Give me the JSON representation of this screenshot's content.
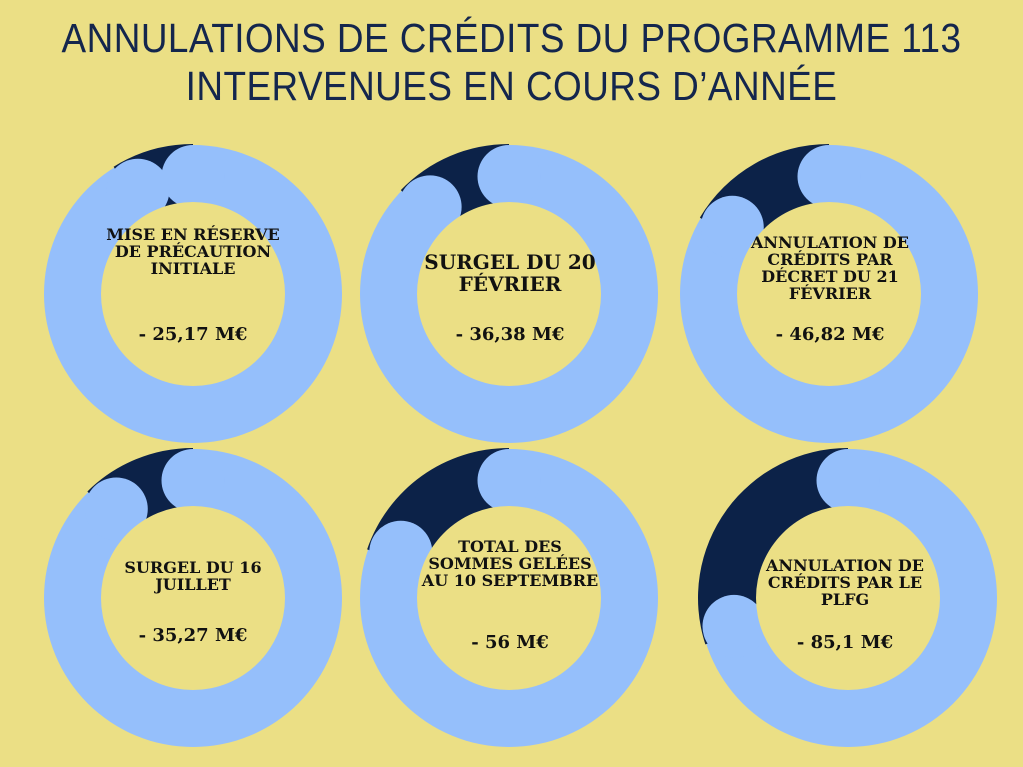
{
  "header": {
    "title_line1": "ANNULATIONS DE CRÉDITS DU PROGRAMME 113",
    "title_line2": "INTERVENUES EN COURS D’ANNÉE"
  },
  "colors": {
    "background": "#ebdf85",
    "ring": "#95bffb",
    "wedge": "#0c2248",
    "center": "#ebdf85",
    "title": "#14264d"
  },
  "chart_data": [
    {
      "type": "pie",
      "label": "MISE EN RÉSERVE DE PRÉCAUTION INITIALE",
      "value": "- 25,17 M€",
      "amount": 25.17
    },
    {
      "type": "pie",
      "label": "SURGEL DU 20 FÉVRIER",
      "value": "- 36,38 M€",
      "amount": 36.38
    },
    {
      "type": "pie",
      "label": "ANNULATION DE CRÉDITS PAR DÉCRET DU 21 FÉVRIER",
      "value": "- 46,82 M€",
      "amount": 46.82
    },
    {
      "type": "pie",
      "label": "SURGEL DU 16 JUILLET",
      "value": "- 35,27 M€",
      "amount": 35.27
    },
    {
      "type": "pie",
      "label": "TOTAL DES SOMMES GELÉES AU 10 SEPTEMBRE",
      "value": "- 56 M€",
      "amount": 56
    },
    {
      "type": "pie",
      "label": "ANNULATION DE CRÉDITS PAR LE PLFG",
      "value": "- 85,1 M€",
      "amount": 85.1
    }
  ]
}
